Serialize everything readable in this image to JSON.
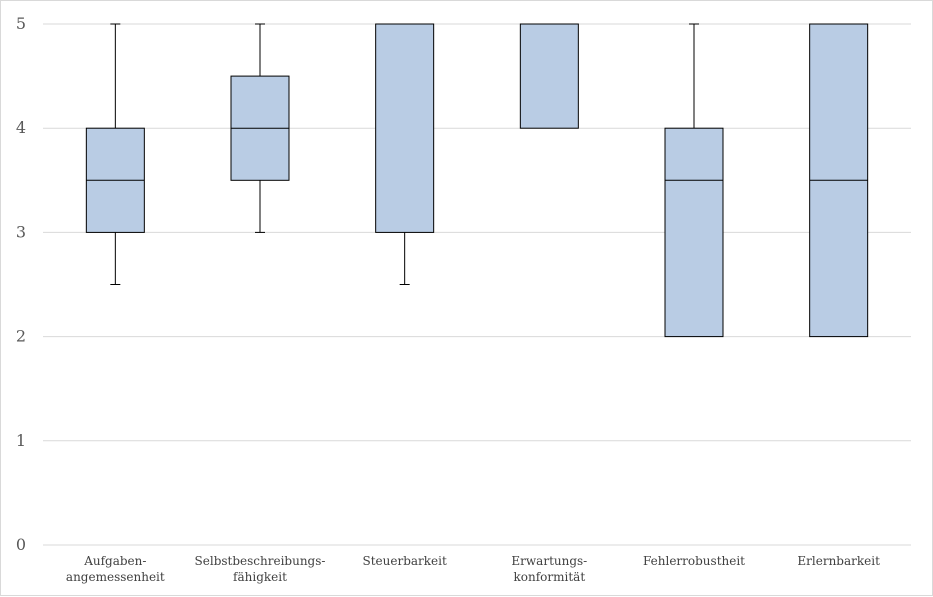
{
  "chart_data": {
    "type": "box",
    "ylim": [
      0,
      5
    ],
    "yticks": [
      "0",
      "1",
      "2",
      "3",
      "4",
      "5"
    ],
    "grid": true,
    "colors": {
      "box_fill": "#b9cce4",
      "box_stroke": "#000000",
      "grid": "#d9d9d9"
    },
    "categories": [
      [
        "Aufgaben-",
        "angemessenheit"
      ],
      [
        "Selbstbeschreibungs-",
        "fähigkeit"
      ],
      [
        "Steuerbarkeit"
      ],
      [
        "Erwartungs-",
        "konformität"
      ],
      [
        "Fehlerrobustheit"
      ],
      [
        "Erlernbarkeit"
      ]
    ],
    "boxes": [
      {
        "min": 2.5,
        "q1": 3.0,
        "median": 3.5,
        "q3": 4.0,
        "max": 5.0
      },
      {
        "min": 3.0,
        "q1": 3.5,
        "median": 4.0,
        "q3": 4.5,
        "max": 5.0
      },
      {
        "min": 2.5,
        "q1": 3.0,
        "median": 5.0,
        "q3": 5.0,
        "max": 5.0
      },
      {
        "min": 4.0,
        "q1": 4.0,
        "median": 5.0,
        "q3": 5.0,
        "max": 5.0
      },
      {
        "min": 2.0,
        "q1": 2.0,
        "median": 3.5,
        "q3": 4.0,
        "max": 5.0
      },
      {
        "min": 2.0,
        "q1": 2.0,
        "median": 3.5,
        "q3": 5.0,
        "max": 5.0
      }
    ]
  }
}
